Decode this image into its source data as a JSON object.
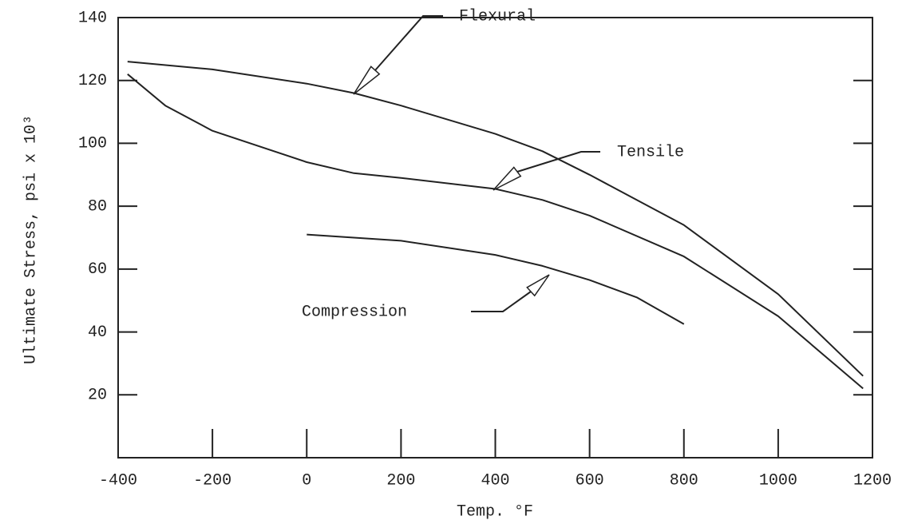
{
  "chart_data": {
    "type": "line",
    "x_label": "Temp. °F",
    "y_label": "Ultimate Stress, psi x 10³",
    "xlim": [
      -400,
      1200
    ],
    "ylim": [
      0,
      140
    ],
    "xticks": [
      -400,
      -200,
      0,
      200,
      400,
      600,
      800,
      1000,
      1200
    ],
    "yticks": [
      20,
      40,
      60,
      80,
      100,
      120,
      140
    ],
    "series": [
      {
        "name": "Flexural",
        "color": "#222222",
        "x": [
          -380,
          -200,
          0,
          100,
          200,
          400,
          500,
          600,
          800,
          1000,
          1180
        ],
        "values": [
          126,
          123.5,
          119,
          116,
          112,
          103,
          97.5,
          90,
          74,
          52,
          26
        ]
      },
      {
        "name": "Tensile",
        "color": "#222222",
        "x": [
          -380,
          -300,
          -200,
          0,
          100,
          200,
          400,
          500,
          600,
          800,
          1000,
          1180
        ],
        "values": [
          122,
          112,
          104,
          94,
          90.5,
          89,
          85.5,
          82,
          77,
          64,
          45,
          22
        ]
      },
      {
        "name": "Compression",
        "color": "#222222",
        "x": [
          0,
          200,
          400,
          500,
          600,
          700,
          800
        ],
        "values": [
          71,
          69,
          64.5,
          61,
          56.5,
          51,
          42.5
        ]
      }
    ]
  }
}
